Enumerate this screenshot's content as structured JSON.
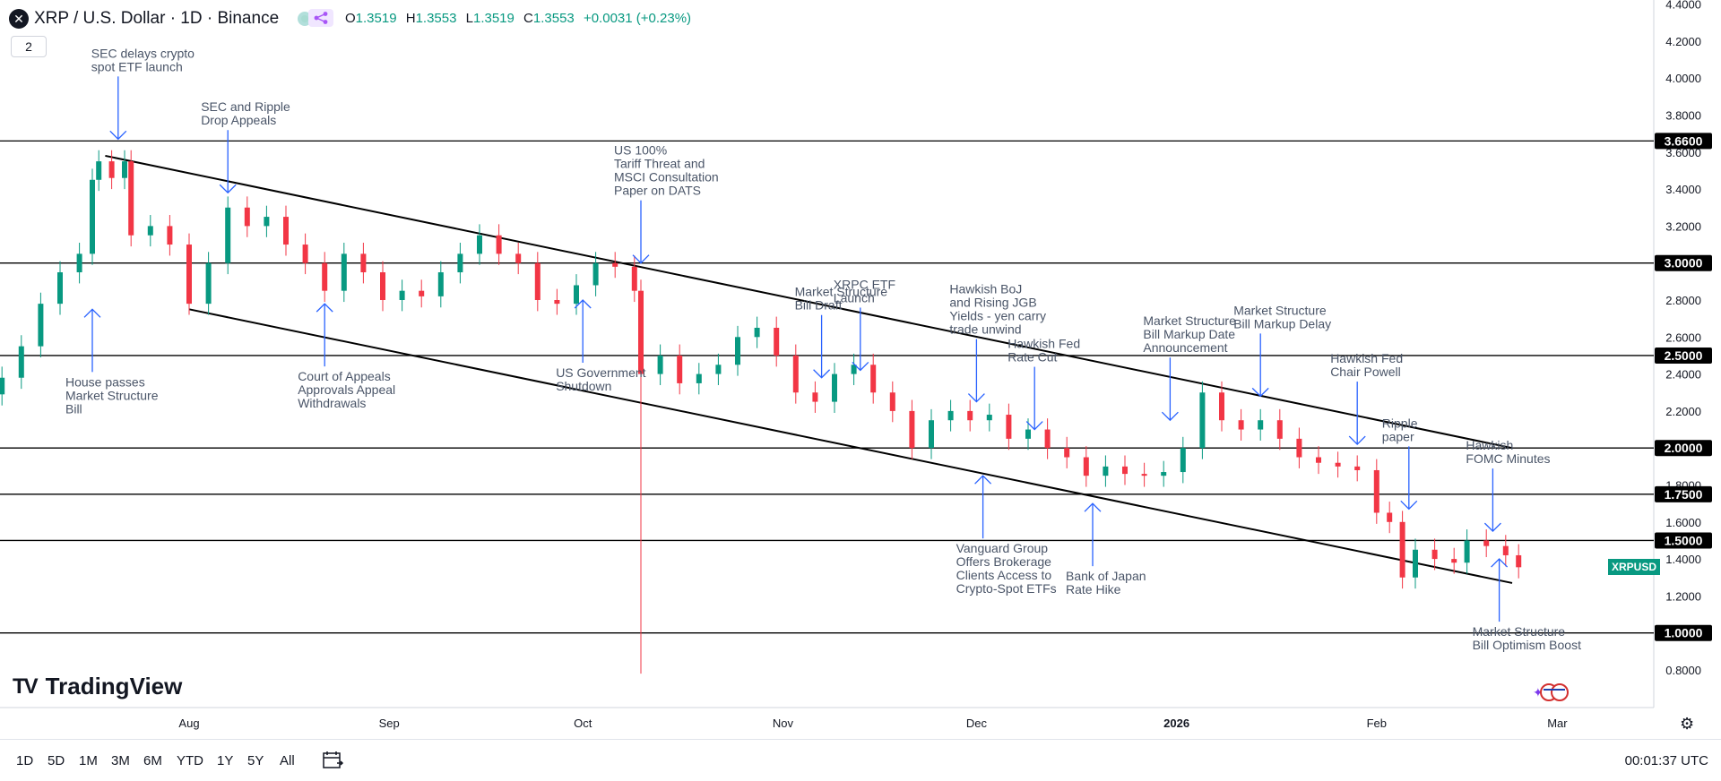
{
  "header": {
    "symbol_icon": "x-close-icon",
    "title": "XRP / U.S. Dollar · 1D · Binance",
    "ohlc": [
      {
        "k": "O",
        "v": "1.3519"
      },
      {
        "k": "H",
        "v": "1.3553"
      },
      {
        "k": "L",
        "v": "1.3519"
      },
      {
        "k": "C",
        "v": "1.3553"
      }
    ],
    "change": "+0.0031 (+0.23%)",
    "layers_count": "2"
  },
  "colors": {
    "up": "#089981",
    "down": "#f23645",
    "line": "#000000",
    "annotation": "#4a5568",
    "arrow": "#2962ff"
  },
  "branding": {
    "logo_text": "TV",
    "name": "TradingView"
  },
  "symbol_tag": "XRPUSD",
  "bottom_bar": {
    "ranges": [
      "1D",
      "5D",
      "1M",
      "3M",
      "6M",
      "YTD",
      "1Y",
      "5Y",
      "All"
    ],
    "clock": "00:01:37 UTC"
  },
  "chart_data": {
    "type": "candlestick",
    "title": "XRP / U.S. Dollar · 1D · Binance",
    "xlabel": "",
    "ylabel": "",
    "y_axis_ticks": [
      "0.8000",
      "1.2000",
      "1.4000",
      "1.6000",
      "1.8000",
      "2.2000",
      "2.4000",
      "2.6000",
      "2.8000",
      "3.2000",
      "3.4000",
      "3.6000",
      "3.8000",
      "4.0000",
      "4.2000",
      "4.4000"
    ],
    "x_axis_ticks": [
      "Aug",
      "Sep",
      "Oct",
      "Nov",
      "Dec",
      "2026",
      "Feb",
      "Mar"
    ],
    "x_axis_bold": [
      "2026"
    ],
    "ylim": [
      0.62,
      4.45
    ],
    "horizontal_levels": [
      {
        "label": "3.6600",
        "value": 3.66
      },
      {
        "label": "3.0000",
        "value": 3.0
      },
      {
        "label": "2.5000",
        "value": 2.5
      },
      {
        "label": "2.0000",
        "value": 2.0
      },
      {
        "label": "1.7500",
        "value": 1.75
      },
      {
        "label": "1.5000",
        "value": 1.5
      },
      {
        "label": "1.0000",
        "value": 1.0
      }
    ],
    "channel_lines": [
      {
        "name": "upper",
        "from": {
          "date": "2025-07-19",
          "price": 3.58
        },
        "to": {
          "date": "2026-02-22",
          "price": 2.0
        }
      },
      {
        "name": "lower",
        "from": {
          "date": "2025-08-01",
          "price": 2.75
        },
        "to": {
          "date": "2026-02-22",
          "price": 1.27
        }
      }
    ],
    "candles": [
      {
        "date": "2025-06-24",
        "close": 2.21
      },
      {
        "date": "2025-06-27",
        "close": 2.24
      },
      {
        "date": "2025-06-30",
        "close": 2.29
      },
      {
        "date": "2025-07-03",
        "close": 2.38
      },
      {
        "date": "2025-07-06",
        "close": 2.55
      },
      {
        "date": "2025-07-09",
        "close": 2.78
      },
      {
        "date": "2025-07-12",
        "close": 2.95
      },
      {
        "date": "2025-07-15",
        "close": 3.05
      },
      {
        "date": "2025-07-17",
        "close": 3.45
      },
      {
        "date": "2025-07-18",
        "close": 3.55
      },
      {
        "date": "2025-07-20",
        "close": 3.46
      },
      {
        "date": "2025-07-22",
        "close": 3.55
      },
      {
        "date": "2025-07-23",
        "close": 3.15
      },
      {
        "date": "2025-07-26",
        "close": 3.2
      },
      {
        "date": "2025-07-29",
        "close": 3.1
      },
      {
        "date": "2025-08-01",
        "close": 2.78
      },
      {
        "date": "2025-08-04",
        "close": 3.0
      },
      {
        "date": "2025-08-07",
        "close": 3.3
      },
      {
        "date": "2025-08-10",
        "close": 3.2
      },
      {
        "date": "2025-08-13",
        "close": 3.25
      },
      {
        "date": "2025-08-16",
        "close": 3.1
      },
      {
        "date": "2025-08-19",
        "close": 3.0
      },
      {
        "date": "2025-08-22",
        "close": 2.85
      },
      {
        "date": "2025-08-25",
        "close": 3.05
      },
      {
        "date": "2025-08-28",
        "close": 2.95
      },
      {
        "date": "2025-08-31",
        "close": 2.8
      },
      {
        "date": "2025-09-03",
        "close": 2.85
      },
      {
        "date": "2025-09-06",
        "close": 2.82
      },
      {
        "date": "2025-09-09",
        "close": 2.95
      },
      {
        "date": "2025-09-12",
        "close": 3.05
      },
      {
        "date": "2025-09-15",
        "close": 3.15
      },
      {
        "date": "2025-09-18",
        "close": 3.05
      },
      {
        "date": "2025-09-21",
        "close": 3.0
      },
      {
        "date": "2025-09-24",
        "close": 2.8
      },
      {
        "date": "2025-09-27",
        "close": 2.78
      },
      {
        "date": "2025-09-30",
        "close": 2.88
      },
      {
        "date": "2025-10-03",
        "close": 3.0
      },
      {
        "date": "2025-10-06",
        "close": 2.98
      },
      {
        "date": "2025-10-09",
        "close": 2.85
      },
      {
        "date": "2025-10-10",
        "close": 2.4
      },
      {
        "date": "2025-10-13",
        "close": 2.5
      },
      {
        "date": "2025-10-16",
        "close": 2.35
      },
      {
        "date": "2025-10-19",
        "close": 2.4
      },
      {
        "date": "2025-10-22",
        "close": 2.45
      },
      {
        "date": "2025-10-25",
        "close": 2.6
      },
      {
        "date": "2025-10-28",
        "close": 2.65
      },
      {
        "date": "2025-10-31",
        "close": 2.5
      },
      {
        "date": "2025-11-03",
        "close": 2.3
      },
      {
        "date": "2025-11-06",
        "close": 2.25
      },
      {
        "date": "2025-11-09",
        "close": 2.4
      },
      {
        "date": "2025-11-12",
        "close": 2.45
      },
      {
        "date": "2025-11-15",
        "close": 2.3
      },
      {
        "date": "2025-11-18",
        "close": 2.2
      },
      {
        "date": "2025-11-21",
        "close": 2.0
      },
      {
        "date": "2025-11-24",
        "close": 2.15
      },
      {
        "date": "2025-11-27",
        "close": 2.2
      },
      {
        "date": "2025-11-30",
        "close": 2.15
      },
      {
        "date": "2025-12-03",
        "close": 2.18
      },
      {
        "date": "2025-12-06",
        "close": 2.05
      },
      {
        "date": "2025-12-09",
        "close": 2.1
      },
      {
        "date": "2025-12-12",
        "close": 2.0
      },
      {
        "date": "2025-12-15",
        "close": 1.95
      },
      {
        "date": "2025-12-18",
        "close": 1.85
      },
      {
        "date": "2025-12-21",
        "close": 1.9
      },
      {
        "date": "2025-12-24",
        "close": 1.86
      },
      {
        "date": "2025-12-27",
        "close": 1.85
      },
      {
        "date": "2025-12-30",
        "close": 1.87
      },
      {
        "date": "2026-01-02",
        "close": 2.0
      },
      {
        "date": "2026-01-05",
        "close": 2.3
      },
      {
        "date": "2026-01-08",
        "close": 2.15
      },
      {
        "date": "2026-01-11",
        "close": 2.1
      },
      {
        "date": "2026-01-14",
        "close": 2.15
      },
      {
        "date": "2026-01-17",
        "close": 2.05
      },
      {
        "date": "2026-01-20",
        "close": 1.95
      },
      {
        "date": "2026-01-23",
        "close": 1.92
      },
      {
        "date": "2026-01-26",
        "close": 1.9
      },
      {
        "date": "2026-01-29",
        "close": 1.88
      },
      {
        "date": "2026-02-01",
        "close": 1.65
      },
      {
        "date": "2026-02-03",
        "close": 1.6
      },
      {
        "date": "2026-02-05",
        "close": 1.3
      },
      {
        "date": "2026-02-07",
        "close": 1.45
      },
      {
        "date": "2026-02-10",
        "close": 1.4
      },
      {
        "date": "2026-02-13",
        "close": 1.38
      },
      {
        "date": "2026-02-15",
        "close": 1.5
      },
      {
        "date": "2026-02-18",
        "close": 1.47
      },
      {
        "date": "2026-02-21",
        "close": 1.42
      },
      {
        "date": "2026-02-23",
        "close": 1.3553
      }
    ],
    "annotations": [
      {
        "text": "SEC delays crypto\nspot ETF launch",
        "date": "2025-07-21",
        "price": 3.67,
        "dir": "down"
      },
      {
        "text": "SEC and Ripple\nDrop Appeals",
        "date": "2025-08-07",
        "price": 3.38,
        "dir": "down"
      },
      {
        "text": "House passes\nMarket Structure\nBill",
        "date": "2025-07-17",
        "price": 2.75,
        "dir": "up"
      },
      {
        "text": "Court of Appeals\nApprovals Appeal\nWithdrawals",
        "date": "2025-08-22",
        "price": 2.78,
        "dir": "up"
      },
      {
        "text": "US 100%\nTariff Threat and\nMSCI Consultation\nPaper on DATS",
        "date": "2025-10-10",
        "price": 3.0,
        "dir": "down"
      },
      {
        "text": "US Government\nShutdown",
        "date": "2025-10-01",
        "price": 2.8,
        "dir": "up"
      },
      {
        "text": "Market Structure\nBill Draft",
        "date": "2025-11-07",
        "price": 2.38,
        "dir": "down"
      },
      {
        "text": "XRPC ETF\nLaunch",
        "date": "2025-11-13",
        "price": 2.42,
        "dir": "down"
      },
      {
        "text": "Hawkish BoJ\nand Rising JGB\nYields - yen carry\ntrade unwind",
        "date": "2025-12-01",
        "price": 2.25,
        "dir": "down"
      },
      {
        "text": "Hawkish Fed\nRate Cut",
        "date": "2025-12-10",
        "price": 2.1,
        "dir": "down"
      },
      {
        "text": "Vanguard Group\nOffers Brokerage\nClients Access to\nCrypto-Spot ETFs",
        "date": "2025-12-02",
        "price": 1.85,
        "dir": "up"
      },
      {
        "text": "Bank of Japan\nRate Hike",
        "date": "2025-12-19",
        "price": 1.7,
        "dir": "up"
      },
      {
        "text": "Market Structure\nBill Markup Date\nAnnouncement",
        "date": "2025-12-31",
        "price": 2.15,
        "dir": "down"
      },
      {
        "text": "Market Structure\nBill Markup Delay",
        "date": "2026-01-14",
        "price": 2.28,
        "dir": "down"
      },
      {
        "text": "Hawkish Fed\nChair Powell",
        "date": "2026-01-29",
        "price": 2.02,
        "dir": "down"
      },
      {
        "text": "Ripple\npaper",
        "date": "2026-02-06",
        "price": 1.67,
        "dir": "down"
      },
      {
        "text": "Hawkish\nFOMC Minutes",
        "date": "2026-02-19",
        "price": 1.55,
        "dir": "down"
      },
      {
        "text": "Market Structure\nBill Optimism Boost",
        "date": "2026-02-20",
        "price": 1.4,
        "dir": "up"
      }
    ]
  }
}
